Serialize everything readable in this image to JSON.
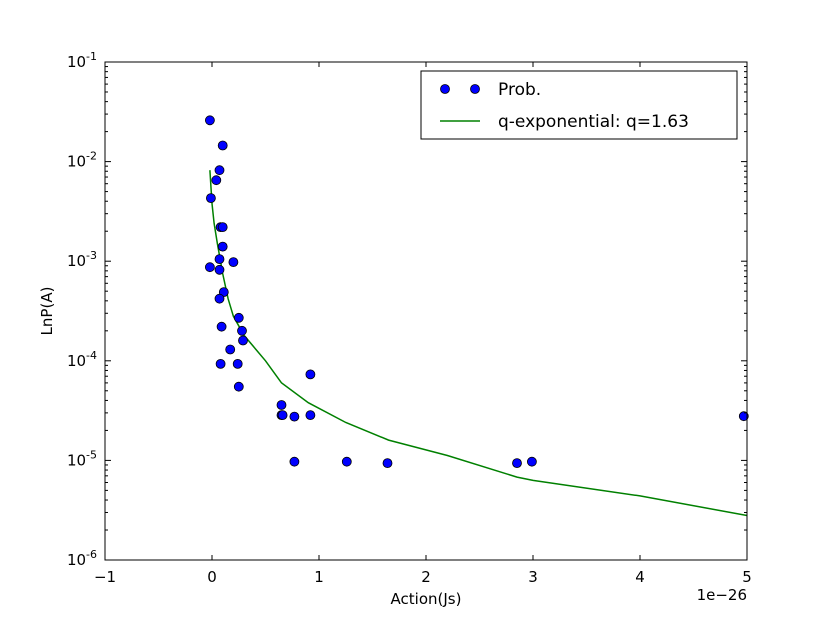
{
  "chart_data": {
    "type": "scatter",
    "xlabel": "Action(Js)",
    "ylabel": "LnP(A)",
    "x_offset_label": "1e−26",
    "xlim": [
      -1,
      5
    ],
    "ylim": [
      1e-06,
      0.1
    ],
    "yscale": "log",
    "x_ticks": [
      -1,
      0,
      1,
      2,
      3,
      4,
      5
    ],
    "x_tick_labels": [
      "−1",
      "0",
      "1",
      "2",
      "3",
      "4",
      "5"
    ],
    "y_ticks": [
      1e-06,
      1e-05,
      0.0001,
      0.001,
      0.01,
      0.1
    ],
    "y_tick_labels": [
      {
        "base": "10",
        "exp": "-6"
      },
      {
        "base": "10",
        "exp": "-5"
      },
      {
        "base": "10",
        "exp": "-4"
      },
      {
        "base": "10",
        "exp": "-3"
      },
      {
        "base": "10",
        "exp": "-2"
      },
      {
        "base": "10",
        "exp": "-1"
      }
    ],
    "grid": false,
    "legend_position": "top-right",
    "series": [
      {
        "name": "Prob.",
        "kind": "scatter",
        "color": "#0000ff",
        "points": [
          [
            -0.02,
            0.026
          ],
          [
            0.1,
            0.0145
          ],
          [
            0.07,
            0.0082
          ],
          [
            0.04,
            0.0065
          ],
          [
            -0.01,
            0.0043
          ],
          [
            0.08,
            0.0022
          ],
          [
            0.1,
            0.0022
          ],
          [
            0.1,
            0.0014
          ],
          [
            0.07,
            0.00105
          ],
          [
            0.2,
            0.00098
          ],
          [
            -0.02,
            0.00087
          ],
          [
            0.07,
            0.00082
          ],
          [
            0.11,
            0.00049
          ],
          [
            0.07,
            0.00042
          ],
          [
            0.25,
            0.00027
          ],
          [
            0.09,
            0.00022
          ],
          [
            0.28,
            0.0002
          ],
          [
            0.29,
            0.00016
          ],
          [
            0.17,
            0.00013
          ],
          [
            0.08,
            9.3e-05
          ],
          [
            0.24,
            9.3e-05
          ],
          [
            0.92,
            7.3e-05
          ],
          [
            0.25,
            5.5e-05
          ],
          [
            0.65,
            3.6e-05
          ],
          [
            0.65,
            2.85e-05
          ],
          [
            0.66,
            2.85e-05
          ],
          [
            0.77,
            2.75e-05
          ],
          [
            0.92,
            2.85e-05
          ],
          [
            0.77,
            9.7e-06
          ],
          [
            1.26,
            9.7e-06
          ],
          [
            1.64,
            9.4e-06
          ],
          [
            2.85,
            9.4e-06
          ],
          [
            2.99,
            9.7e-06
          ],
          [
            4.97,
            2.78e-05
          ]
        ]
      },
      {
        "name": "q-exponential: q=1.63",
        "kind": "line",
        "color": "#008000",
        "points": [
          [
            -0.02,
            0.0082
          ],
          [
            0.0,
            0.0038
          ],
          [
            0.02,
            0.0024
          ],
          [
            0.05,
            0.0015
          ],
          [
            0.1,
            0.00075
          ],
          [
            0.15,
            0.00042
          ],
          [
            0.2,
            0.00028
          ],
          [
            0.3,
            0.00018
          ],
          [
            0.5,
            0.0001
          ],
          [
            0.65,
            6e-05
          ],
          [
            0.9,
            3.8e-05
          ],
          [
            1.25,
            2.4e-05
          ],
          [
            1.65,
            1.6e-05
          ],
          [
            2.2,
            1.12e-05
          ],
          [
            2.85,
            6.8e-06
          ],
          [
            3.0,
            6.3e-06
          ],
          [
            4.0,
            4.4e-06
          ],
          [
            5.0,
            2.8e-06
          ]
        ]
      }
    ]
  }
}
